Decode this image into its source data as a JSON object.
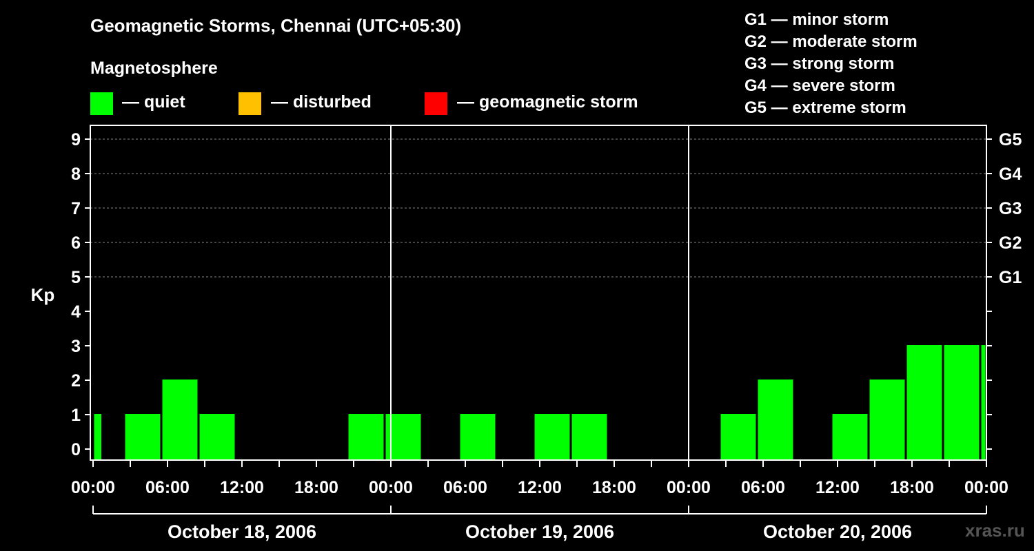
{
  "title": "Geomagnetic Storms, Chennai (UTC+05:30)",
  "legend": {
    "heading": "Magnetosphere",
    "items": [
      {
        "label": "— quiet",
        "color": "#00ff00"
      },
      {
        "label": "— disturbed",
        "color": "#ffc000"
      },
      {
        "label": "— geomagnetic storm",
        "color": "#ff0000"
      }
    ]
  },
  "storm_scale": [
    "G1 — minor storm",
    "G2 — moderate storm",
    "G3 — strong storm",
    "G4 — severe storm",
    "G5 — extreme storm"
  ],
  "watermark": "xras.ru",
  "chart_data": {
    "type": "bar",
    "ylabel": "Kp",
    "ylim": [
      0,
      9
    ],
    "yticks": [
      "0",
      "1",
      "2",
      "3",
      "4",
      "5",
      "6",
      "7",
      "8",
      "9"
    ],
    "g_levels": [
      {
        "label": "G1",
        "kp": 5
      },
      {
        "label": "G2",
        "kp": 6
      },
      {
        "label": "G3",
        "kp": 7
      },
      {
        "label": "G4",
        "kp": 8
      },
      {
        "label": "G5",
        "kp": 9
      }
    ],
    "x_tick_labels": [
      "00:00",
      "06:00",
      "12:00",
      "18:00",
      "00:00",
      "06:00",
      "12:00",
      "18:00",
      "00:00",
      "06:00",
      "12:00",
      "18:00",
      "00:00"
    ],
    "dates": [
      "October 18, 2006",
      "October 19, 2006",
      "October 20, 2006"
    ],
    "bars": [
      {
        "start": 0.0,
        "end": 0.75,
        "kp": 1,
        "color": "#00ff00"
      },
      {
        "start": 2.5,
        "end": 5.5,
        "kp": 1,
        "color": "#00ff00"
      },
      {
        "start": 5.5,
        "end": 8.5,
        "kp": 2,
        "color": "#00ff00"
      },
      {
        "start": 8.5,
        "end": 11.5,
        "kp": 1,
        "color": "#00ff00"
      },
      {
        "start": 20.5,
        "end": 23.5,
        "kp": 1,
        "color": "#00ff00"
      },
      {
        "start": 23.5,
        "end": 26.5,
        "kp": 1,
        "color": "#00ff00"
      },
      {
        "start": 29.5,
        "end": 32.5,
        "kp": 1,
        "color": "#00ff00"
      },
      {
        "start": 35.5,
        "end": 38.5,
        "kp": 1,
        "color": "#00ff00"
      },
      {
        "start": 38.5,
        "end": 41.5,
        "kp": 1,
        "color": "#00ff00"
      },
      {
        "start": 50.5,
        "end": 53.5,
        "kp": 1,
        "color": "#00ff00"
      },
      {
        "start": 53.5,
        "end": 56.5,
        "kp": 2,
        "color": "#00ff00"
      },
      {
        "start": 59.5,
        "end": 62.5,
        "kp": 1,
        "color": "#00ff00"
      },
      {
        "start": 62.5,
        "end": 65.5,
        "kp": 2,
        "color": "#00ff00"
      },
      {
        "start": 65.5,
        "end": 68.5,
        "kp": 3,
        "color": "#00ff00"
      },
      {
        "start": 68.5,
        "end": 71.5,
        "kp": 3,
        "color": "#00ff00"
      },
      {
        "start": 71.5,
        "end": 72.0,
        "kp": 3,
        "color": "#00ff00"
      }
    ]
  }
}
